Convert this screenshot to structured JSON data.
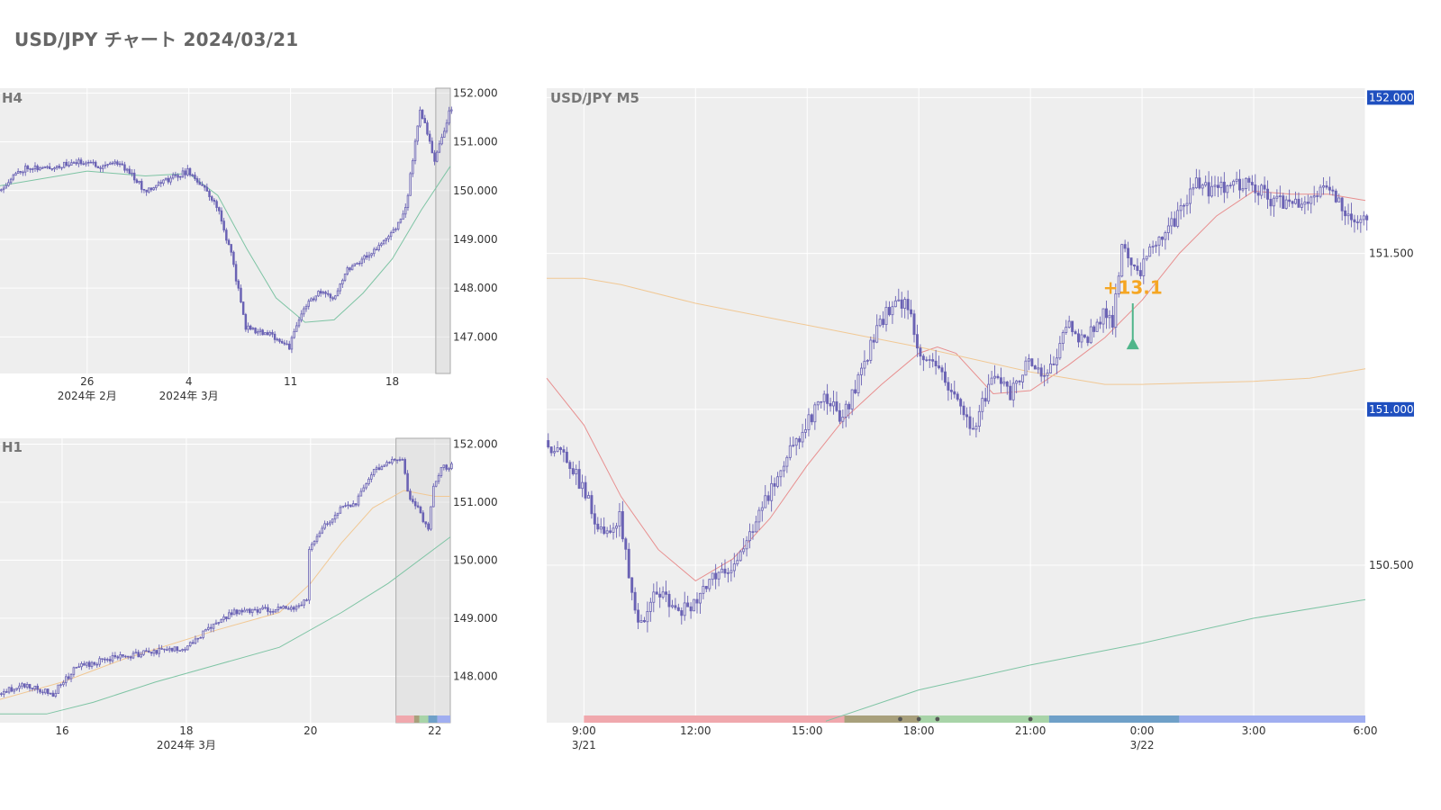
{
  "page": {
    "title": "USD/JPY チャート 2024/03/21"
  },
  "colors": {
    "plot_bg": "#eeeeee",
    "grid": "#ffffff",
    "candle": "#6a62b4",
    "ma_green": "#7ec4a4",
    "ma_orange": "#f1c894",
    "ma_red": "#e88f8f",
    "price_tag": "#1f4fbf",
    "annotation": "#f5a623",
    "signal_marker": "#4fb58a",
    "frame": "#aaaaaa"
  },
  "chart_data": [
    {
      "id": "h4",
      "type": "candlestick",
      "label": "H4",
      "ylim": [
        146.25,
        152.1
      ],
      "yticks": [
        147,
        148,
        149,
        150,
        151,
        152
      ],
      "ytick_labels": [
        "147.000",
        "148.000",
        "149.000",
        "150.000",
        "151.000",
        "152.000"
      ],
      "x_range": [
        "2024-02-20",
        "2024-03-22"
      ],
      "xticks": [
        {
          "date": "2024-02-26",
          "label": "26",
          "sub": "2024年 2月"
        },
        {
          "date": "2024-03-04",
          "label": "4",
          "sub": "2024年 3月"
        },
        {
          "date": "2024-03-11",
          "label": "11",
          "sub": ""
        },
        {
          "date": "2024-03-18",
          "label": "18",
          "sub": ""
        }
      ],
      "candle_interval_hours": 4,
      "close_path": [
        [
          "2024-02-20",
          150.0
        ],
        [
          "2024-02-21",
          150.3
        ],
        [
          "2024-02-22",
          150.5
        ],
        [
          "2024-02-23",
          150.45
        ],
        [
          "2024-02-26",
          150.6
        ],
        [
          "2024-02-27",
          150.5
        ],
        [
          "2024-02-28",
          150.6
        ],
        [
          "2024-02-29",
          150.4
        ],
        [
          "2024-03-01",
          150.0
        ],
        [
          "2024-03-02",
          150.15
        ],
        [
          "2024-03-04",
          150.4
        ],
        [
          "2024-03-05",
          150.1
        ],
        [
          "2024-03-06",
          149.7
        ],
        [
          "2024-03-07",
          148.7
        ],
        [
          "2024-03-08",
          147.2
        ],
        [
          "2024-03-10",
          147.0
        ],
        [
          "2024-03-11",
          146.8
        ],
        [
          "2024-03-12",
          147.6
        ],
        [
          "2024-03-13",
          147.9
        ],
        [
          "2024-03-14",
          147.8
        ],
        [
          "2024-03-15",
          148.4
        ],
        [
          "2024-03-17",
          148.8
        ],
        [
          "2024-03-18",
          149.1
        ],
        [
          "2024-03-19",
          149.6
        ],
        [
          "2024-03-20",
          151.7
        ],
        [
          "2024-03-21",
          150.6
        ],
        [
          "2024-03-22",
          151.6
        ]
      ],
      "ma_series": [
        {
          "color_key": "ma_green",
          "points": [
            [
              "2024-02-20",
              150.1
            ],
            [
              "2024-02-26",
              150.4
            ],
            [
              "2024-03-01",
              150.3
            ],
            [
              "2024-03-04",
              150.35
            ],
            [
              "2024-03-06",
              149.9
            ],
            [
              "2024-03-08",
              148.8
            ],
            [
              "2024-03-10",
              147.8
            ],
            [
              "2024-03-12",
              147.3
            ],
            [
              "2024-03-14",
              147.35
            ],
            [
              "2024-03-16",
              147.9
            ],
            [
              "2024-03-18",
              148.6
            ],
            [
              "2024-03-20",
              149.6
            ],
            [
              "2024-03-22",
              150.5
            ]
          ]
        }
      ],
      "highlight": [
        "2024-03-21",
        "2024-03-22"
      ]
    },
    {
      "id": "h1",
      "type": "candlestick",
      "label": "H1",
      "ylim": [
        147.2,
        152.1
      ],
      "yticks": [
        148,
        149,
        150,
        151,
        152
      ],
      "ytick_labels": [
        "148.000",
        "149.000",
        "150.000",
        "151.000",
        "152.000"
      ],
      "x_range": [
        "2024-03-15T00:00",
        "2024-03-22T06:00"
      ],
      "xticks": [
        {
          "date": "2024-03-16T00:00",
          "label": "16",
          "sub": ""
        },
        {
          "date": "2024-03-18T00:00",
          "label": "18",
          "sub": "2024年 3月"
        },
        {
          "date": "2024-03-20T00:00",
          "label": "20",
          "sub": ""
        },
        {
          "date": "2024-03-22T00:00",
          "label": "22",
          "sub": ""
        }
      ],
      "candle_interval_hours": 1,
      "close_path": [
        [
          "2024-03-15T00:00",
          147.7
        ],
        [
          "2024-03-15T09:00",
          147.85
        ],
        [
          "2024-03-15T21:00",
          147.7
        ],
        [
          "2024-03-16T06:00",
          148.15
        ],
        [
          "2024-03-16T18:00",
          148.3
        ],
        [
          "2024-03-18T00:00",
          148.5
        ],
        [
          "2024-03-18T12:00",
          148.9
        ],
        [
          "2024-03-18T18:00",
          149.1
        ],
        [
          "2024-03-19T06:00",
          149.15
        ],
        [
          "2024-03-19T12:00",
          149.15
        ],
        [
          "2024-03-19T18:00",
          149.2
        ],
        [
          "2024-03-19T23:00",
          149.3
        ],
        [
          "2024-03-20T00:00",
          150.2
        ],
        [
          "2024-03-20T06:00",
          150.6
        ],
        [
          "2024-03-20T12:00",
          150.9
        ],
        [
          "2024-03-20T18:00",
          151.0
        ],
        [
          "2024-03-21T00:00",
          151.5
        ],
        [
          "2024-03-21T06:00",
          151.7
        ],
        [
          "2024-03-21T12:00",
          151.7
        ],
        [
          "2024-03-21T15:00",
          151.0
        ],
        [
          "2024-03-21T18:00",
          150.9
        ],
        [
          "2024-03-21T22:00",
          150.5
        ],
        [
          "2024-03-22T00:00",
          151.3
        ],
        [
          "2024-03-22T03:00",
          151.6
        ],
        [
          "2024-03-22T06:00",
          151.62
        ]
      ],
      "ma_series": [
        {
          "color_key": "ma_orange",
          "points": [
            [
              "2024-03-15T00:00",
              147.6
            ],
            [
              "2024-03-16T00:00",
              147.9
            ],
            [
              "2024-03-17T00:00",
              148.3
            ],
            [
              "2024-03-18T12:00",
              148.8
            ],
            [
              "2024-03-19T12:00",
              149.1
            ],
            [
              "2024-03-20T00:00",
              149.6
            ],
            [
              "2024-03-20T12:00",
              150.3
            ],
            [
              "2024-03-21T00:00",
              150.9
            ],
            [
              "2024-03-21T12:00",
              151.2
            ],
            [
              "2024-03-22T00:00",
              151.1
            ],
            [
              "2024-03-22T06:00",
              151.1
            ]
          ]
        },
        {
          "color_key": "ma_green",
          "points": [
            [
              "2024-03-15T00:00",
              147.35
            ],
            [
              "2024-03-15T18:00",
              147.35
            ],
            [
              "2024-03-16T12:00",
              147.55
            ],
            [
              "2024-03-17T12:00",
              147.9
            ],
            [
              "2024-03-18T12:00",
              148.2
            ],
            [
              "2024-03-19T12:00",
              148.5
            ],
            [
              "2024-03-20T12:00",
              149.1
            ],
            [
              "2024-03-21T06:00",
              149.6
            ],
            [
              "2024-03-22T06:00",
              150.4
            ]
          ]
        }
      ],
      "highlight": [
        "2024-03-21T09:00",
        "2024-03-22T06:00"
      ],
      "session_bar": [
        {
          "start": "2024-03-21T09:00",
          "end": "2024-03-21T16:00",
          "color": "#f0a8ad"
        },
        {
          "start": "2024-03-21T16:00",
          "end": "2024-03-21T18:00",
          "color": "#a8a07c"
        },
        {
          "start": "2024-03-21T18:00",
          "end": "2024-03-21T21:30",
          "color": "#a8d4a8"
        },
        {
          "start": "2024-03-21T21:30",
          "end": "2024-03-22T01:00",
          "color": "#6fa0c8"
        },
        {
          "start": "2024-03-22T01:00",
          "end": "2024-03-22T06:00",
          "color": "#a0aef0"
        }
      ]
    },
    {
      "id": "m5",
      "type": "candlestick",
      "label": "USD/JPY M5",
      "ylim": [
        149.995,
        152.03
      ],
      "yticks": [
        150.5,
        151.0,
        151.5,
        152.0
      ],
      "ytick_labels": [
        "150.500",
        "151.000",
        "151.500",
        "152.000"
      ],
      "tagged_ticks": [
        "152.000",
        "151.000"
      ],
      "x_range": [
        "2024-03-21T08:00",
        "2024-03-22T06:00"
      ],
      "xticks": [
        {
          "date": "2024-03-21T09:00",
          "label": "9:00",
          "sub": "3/21"
        },
        {
          "date": "2024-03-21T12:00",
          "label": "12:00",
          "sub": ""
        },
        {
          "date": "2024-03-21T15:00",
          "label": "15:00",
          "sub": ""
        },
        {
          "date": "2024-03-21T18:00",
          "label": "18:00",
          "sub": ""
        },
        {
          "date": "2024-03-21T21:00",
          "label": "21:00",
          "sub": ""
        },
        {
          "date": "2024-03-22T00:00",
          "label": "0:00",
          "sub": "3/22"
        },
        {
          "date": "2024-03-22T03:00",
          "label": "3:00",
          "sub": ""
        },
        {
          "date": "2024-03-22T06:00",
          "label": "6:00",
          "sub": ""
        }
      ],
      "candle_interval_minutes": 5,
      "close_path": [
        [
          "2024-03-21T08:00",
          150.9
        ],
        [
          "2024-03-21T08:30",
          150.85
        ],
        [
          "2024-03-21T09:00",
          150.75
        ],
        [
          "2024-03-21T09:30",
          150.6
        ],
        [
          "2024-03-21T10:00",
          150.65
        ],
        [
          "2024-03-21T10:30",
          150.3
        ],
        [
          "2024-03-21T11:00",
          150.42
        ],
        [
          "2024-03-21T11:30",
          150.35
        ],
        [
          "2024-03-21T12:00",
          150.38
        ],
        [
          "2024-03-21T12:30",
          150.45
        ],
        [
          "2024-03-21T13:00",
          150.5
        ],
        [
          "2024-03-21T13:30",
          150.6
        ],
        [
          "2024-03-21T14:00",
          150.72
        ],
        [
          "2024-03-21T14:30",
          150.85
        ],
        [
          "2024-03-21T15:00",
          150.95
        ],
        [
          "2024-03-21T15:30",
          151.05
        ],
        [
          "2024-03-21T16:00",
          150.97
        ],
        [
          "2024-03-21T16:30",
          151.12
        ],
        [
          "2024-03-21T17:00",
          151.28
        ],
        [
          "2024-03-21T17:30",
          151.35
        ],
        [
          "2024-03-21T17:50",
          151.33
        ],
        [
          "2024-03-21T18:00",
          151.18
        ],
        [
          "2024-03-21T18:30",
          151.13
        ],
        [
          "2024-03-21T19:00",
          151.05
        ],
        [
          "2024-03-21T19:30",
          150.93
        ],
        [
          "2024-03-21T20:00",
          151.1
        ],
        [
          "2024-03-21T20:30",
          151.05
        ],
        [
          "2024-03-21T21:00",
          151.15
        ],
        [
          "2024-03-21T21:30",
          151.1
        ],
        [
          "2024-03-21T22:00",
          151.27
        ],
        [
          "2024-03-21T22:30",
          151.22
        ],
        [
          "2024-03-21T23:00",
          151.3
        ],
        [
          "2024-03-21T23:15",
          151.28
        ],
        [
          "2024-03-21T23:30",
          151.52
        ],
        [
          "2024-03-22T00:00",
          151.45
        ],
        [
          "2024-03-22T00:30",
          151.55
        ],
        [
          "2024-03-22T01:00",
          151.62
        ],
        [
          "2024-03-22T01:30",
          151.72
        ],
        [
          "2024-03-22T02:00",
          151.7
        ],
        [
          "2024-03-22T02:30",
          151.73
        ],
        [
          "2024-03-22T03:00",
          151.72
        ],
        [
          "2024-03-22T03:30",
          151.67
        ],
        [
          "2024-03-22T04:00",
          151.66
        ],
        [
          "2024-03-22T04:30",
          151.68
        ],
        [
          "2024-03-22T05:00",
          151.72
        ],
        [
          "2024-03-22T05:30",
          151.63
        ],
        [
          "2024-03-22T06:00",
          151.62
        ]
      ],
      "ma_series": [
        {
          "color_key": "ma_red",
          "points": [
            [
              "2024-03-21T08:00",
              151.1
            ],
            [
              "2024-03-21T09:00",
              150.95
            ],
            [
              "2024-03-21T10:00",
              150.72
            ],
            [
              "2024-03-21T11:00",
              150.55
            ],
            [
              "2024-03-21T12:00",
              150.45
            ],
            [
              "2024-03-21T13:00",
              150.52
            ],
            [
              "2024-03-21T14:00",
              150.65
            ],
            [
              "2024-03-21T15:00",
              150.82
            ],
            [
              "2024-03-21T16:00",
              150.97
            ],
            [
              "2024-03-21T17:00",
              151.08
            ],
            [
              "2024-03-21T18:00",
              151.18
            ],
            [
              "2024-03-21T18:30",
              151.2
            ],
            [
              "2024-03-21T19:00",
              151.18
            ],
            [
              "2024-03-21T20:00",
              151.05
            ],
            [
              "2024-03-21T21:00",
              151.06
            ],
            [
              "2024-03-21T22:00",
              151.14
            ],
            [
              "2024-03-21T23:00",
              151.23
            ],
            [
              "2024-03-22T00:00",
              151.35
            ],
            [
              "2024-03-22T01:00",
              151.5
            ],
            [
              "2024-03-22T02:00",
              151.62
            ],
            [
              "2024-03-22T03:00",
              151.7
            ],
            [
              "2024-03-22T04:00",
              151.69
            ],
            [
              "2024-03-22T05:00",
              151.69
            ],
            [
              "2024-03-22T06:00",
              151.67
            ]
          ]
        },
        {
          "color_key": "ma_orange",
          "points": [
            [
              "2024-03-21T08:00",
              151.42
            ],
            [
              "2024-03-21T09:00",
              151.42
            ],
            [
              "2024-03-21T10:00",
              151.4
            ],
            [
              "2024-03-21T12:00",
              151.34
            ],
            [
              "2024-03-21T15:00",
              151.27
            ],
            [
              "2024-03-21T18:00",
              151.2
            ],
            [
              "2024-03-21T21:00",
              151.12
            ],
            [
              "2024-03-21T23:00",
              151.08
            ],
            [
              "2024-03-22T00:00",
              151.08
            ],
            [
              "2024-03-22T03:00",
              151.09
            ],
            [
              "2024-03-22T04:30",
              151.1
            ],
            [
              "2024-03-22T06:00",
              151.13
            ]
          ]
        },
        {
          "color_key": "ma_green",
          "points": [
            [
              "2024-03-21T15:30",
              150.0
            ],
            [
              "2024-03-21T18:00",
              150.1
            ],
            [
              "2024-03-21T21:00",
              150.18
            ],
            [
              "2024-03-22T00:00",
              150.25
            ],
            [
              "2024-03-22T03:00",
              150.33
            ],
            [
              "2024-03-22T06:00",
              150.39
            ]
          ]
        }
      ],
      "annotation": {
        "text": "+13.1",
        "time": "2024-03-21T23:45",
        "price": 151.37
      },
      "signal": {
        "time": "2024-03-21T23:45",
        "from_price": 151.34,
        "to_price": 151.21
      },
      "session_bar": [
        {
          "start": "2024-03-21T09:00",
          "end": "2024-03-21T16:00",
          "color": "#f0a8ad"
        },
        {
          "start": "2024-03-21T16:00",
          "end": "2024-03-21T18:00",
          "color": "#a8a07c"
        },
        {
          "start": "2024-03-21T18:00",
          "end": "2024-03-21T21:30",
          "color": "#a8d4a8"
        },
        {
          "start": "2024-03-21T21:30",
          "end": "2024-03-22T01:00",
          "color": "#6fa0c8"
        },
        {
          "start": "2024-03-22T01:00",
          "end": "2024-03-22T06:00",
          "color": "#a0aef0"
        }
      ],
      "session_dots": [
        "2024-03-21T17:30",
        "2024-03-21T18:00",
        "2024-03-21T18:30",
        "2024-03-21T21:00"
      ]
    }
  ]
}
